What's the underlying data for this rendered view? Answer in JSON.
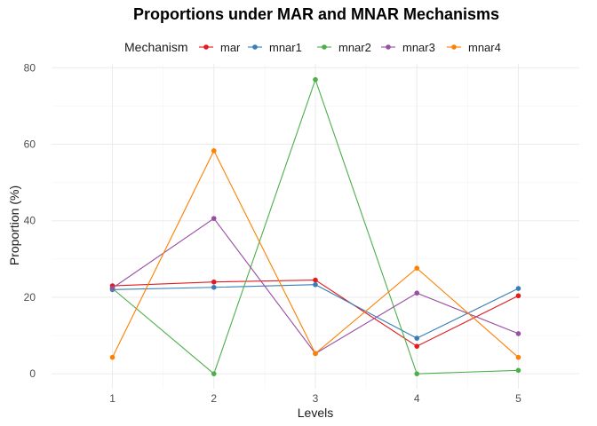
{
  "chart_data": {
    "type": "line",
    "title": "Proportions under MAR and MNAR Mechanisms",
    "xlabel": "Levels",
    "ylabel": "Proportion (%)",
    "legend_title": "Mechanism",
    "legend_position": "top",
    "grid": true,
    "x": [
      1,
      2,
      3,
      4,
      5
    ],
    "x_tick_labels": [
      "1",
      "2",
      "3",
      "4",
      "5"
    ],
    "y_ticks": [
      0,
      20,
      40,
      60,
      80
    ],
    "y_tick_labels": [
      "0",
      "20",
      "40",
      "60",
      "80"
    ],
    "xlim": [
      0.4,
      5.6
    ],
    "ylim": [
      -3.9,
      81
    ],
    "series": [
      {
        "name": "mar",
        "color": "#E41A1C",
        "values": [
          23.0,
          24.0,
          24.5,
          7.2,
          20.4
        ]
      },
      {
        "name": "mnar1",
        "color": "#377EB8",
        "values": [
          22.0,
          22.6,
          23.3,
          9.3,
          22.3
        ]
      },
      {
        "name": "mnar2",
        "color": "#4DAF4A",
        "values": [
          22.3,
          0.0,
          76.9,
          0.0,
          0.9
        ]
      },
      {
        "name": "mnar3",
        "color": "#984EA3",
        "values": [
          22.4,
          40.6,
          5.3,
          21.1,
          10.5
        ]
      },
      {
        "name": "mnar4",
        "color": "#FF7F00",
        "values": [
          4.3,
          58.3,
          5.3,
          27.6,
          4.3
        ]
      }
    ]
  }
}
